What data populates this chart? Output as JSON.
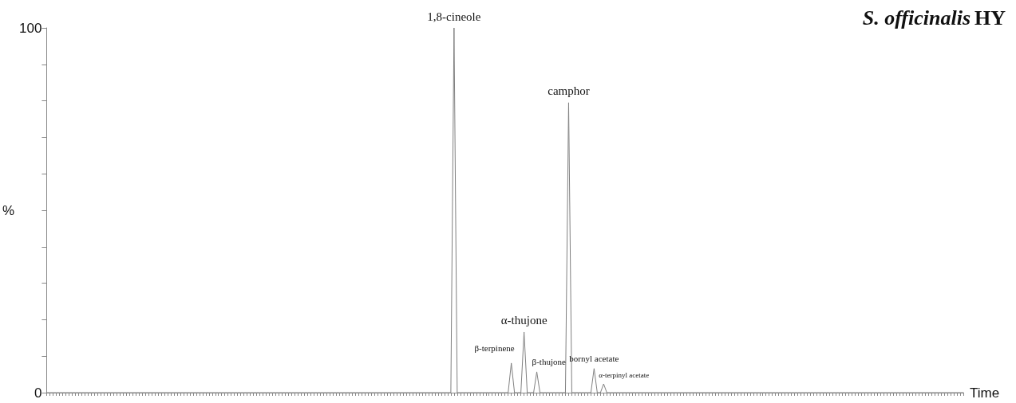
{
  "chart_data": {
    "type": "line",
    "title": "S. officinalis HY",
    "xlabel": "Time",
    "ylabel": "%",
    "categories": [
      null,
      null,
      null,
      null,
      null,
      null,
      null,
      null,
      null,
      null,
      null,
      null,
      null,
      null,
      null,
      null,
      null,
      null,
      null,
      null,
      null,
      null,
      null,
      null,
      null,
      null,
      null,
      null,
      null,
      null,
      null,
      null,
      null,
      null,
      null,
      null,
      null,
      null,
      null,
      null,
      null,
      null,
      null,
      null,
      null,
      null,
      null,
      null,
      null,
      null,
      null,
      null,
      null,
      null,
      null,
      null,
      null,
      null,
      null,
      null,
      null,
      null,
      null,
      null,
      null,
      null,
      null,
      null,
      null,
      null,
      null,
      null,
      null,
      null,
      null,
      null,
      null,
      null,
      null,
      null,
      null,
      null,
      null,
      null,
      null,
      null,
      null,
      null,
      null,
      null,
      null,
      null,
      null,
      null,
      null,
      null,
      null,
      null,
      null,
      null,
      null,
      null,
      null,
      null,
      null,
      null,
      null,
      null,
      null,
      null,
      null,
      null,
      null,
      null,
      null,
      null,
      null,
      null,
      null,
      null,
      null,
      null,
      null,
      null,
      null,
      null,
      null,
      null,
      null,
      null,
      null,
      null,
      null,
      null,
      null,
      null,
      null,
      null,
      null,
      null,
      null,
      null,
      null,
      null,
      null,
      null,
      null,
      null,
      null,
      null,
      null,
      null,
      null,
      null,
      null,
      null,
      null,
      null,
      null,
      null,
      null,
      null,
      null,
      null,
      null,
      null,
      null,
      null,
      null,
      null,
      null,
      null,
      null,
      null,
      null,
      null,
      null,
      null,
      null,
      null,
      null,
      null,
      null,
      null,
      null,
      null,
      null,
      null,
      null,
      null,
      null,
      null,
      null,
      null,
      null,
      null,
      null,
      null,
      null,
      null,
      null,
      null,
      null,
      null,
      null,
      null,
      null,
      null,
      null,
      null,
      null,
      null,
      null,
      null,
      null,
      null,
      null,
      null,
      null,
      null,
      null,
      null,
      null,
      null,
      null,
      null,
      null,
      null,
      null,
      null,
      null,
      null,
      null,
      null,
      null,
      null,
      null,
      null,
      null,
      null,
      null,
      null,
      null,
      null,
      null,
      null,
      null,
      null,
      null,
      null,
      null,
      null,
      null,
      null,
      null,
      null,
      null,
      null,
      null,
      null,
      null,
      null,
      null,
      null,
      null,
      null,
      null,
      null,
      null,
      null,
      null,
      null,
      null,
      null,
      null,
      null,
      null,
      null,
      null,
      null,
      null,
      null,
      null,
      null,
      null,
      null,
      null,
      null,
      null
    ],
    "series": [
      {
        "color": "#808080",
        "values": [
          0,
          0,
          0,
          0,
          0,
          0,
          0,
          0,
          0,
          0,
          0,
          0,
          0,
          0,
          0,
          0,
          0,
          0,
          0,
          0,
          0,
          0,
          0,
          0,
          0,
          0,
          0,
          0,
          0,
          0,
          0,
          0,
          0,
          0,
          0,
          0,
          0,
          0,
          0,
          0,
          0,
          0,
          0,
          0,
          0,
          0,
          0,
          0,
          0,
          0,
          0,
          0,
          0,
          0,
          0,
          0,
          0,
          0,
          0,
          0,
          0,
          0,
          0,
          0,
          0,
          0,
          0,
          0,
          0,
          0,
          0,
          0,
          0,
          0,
          0,
          0,
          0,
          0,
          0,
          0,
          0,
          0,
          0,
          0,
          0,
          0,
          0,
          0,
          0,
          0,
          0,
          0,
          0,
          0,
          0,
          0,
          0,
          0,
          0,
          0,
          0,
          0,
          0,
          0,
          0,
          0,
          0,
          0,
          0,
          0,
          0,
          0,
          0,
          0,
          0,
          0,
          0,
          0,
          0,
          0,
          0,
          0,
          0,
          0,
          0,
          0,
          0,
          0,
          100,
          0,
          0,
          0,
          0,
          0,
          0,
          0,
          0,
          0,
          0,
          0,
          0,
          0,
          0,
          0,
          0,
          0,
          8.1,
          0,
          0,
          0,
          16.6,
          0,
          0,
          0,
          5.7,
          0,
          0,
          0,
          0,
          0,
          0,
          0,
          0,
          0,
          79.5,
          0,
          0,
          0,
          0,
          0,
          0,
          0,
          6.6,
          0,
          0,
          2.4,
          0,
          0,
          0,
          0,
          0,
          0,
          0,
          0,
          0,
          0,
          0,
          0,
          0,
          0,
          0,
          0,
          0,
          0,
          0,
          0,
          0,
          0,
          0,
          0,
          0,
          0,
          0,
          0,
          0,
          0,
          0,
          0,
          0,
          0,
          0,
          0,
          0,
          0,
          0,
          0,
          0,
          0,
          0,
          0,
          0,
          0,
          0,
          0,
          0,
          0,
          0,
          0,
          0,
          0,
          0,
          0,
          0,
          0,
          0,
          0,
          0,
          0,
          0,
          0,
          0,
          0,
          0,
          0,
          0,
          0,
          0,
          0,
          0,
          0,
          0,
          0,
          0,
          0,
          0,
          0,
          0,
          0,
          0,
          0,
          0,
          0,
          0,
          0,
          0,
          0,
          0,
          0,
          0,
          0,
          0,
          0,
          0,
          0,
          0,
          0,
          0,
          0,
          0,
          0,
          0,
          0,
          0,
          0,
          0,
          0,
          0,
          0,
          0
        ]
      }
    ],
    "annotations": [
      "1,8-cineole",
      "β-terpinene",
      "α-thujone",
      "β-thujone",
      "camphor",
      "bornyl acetate",
      "α-terpinyl acetate"
    ],
    "ylim": [
      0,
      100
    ],
    "yticks": [
      0,
      {
        "value": 10,
        "label": null
      },
      {
        "value": 20,
        "label": null
      },
      {
        "value": 30,
        "label": null
      },
      {
        "value": 40,
        "label": null
      },
      {
        "value": 50,
        "label": null
      },
      {
        "value": 60,
        "label": null
      },
      {
        "value": 70,
        "label": null
      },
      {
        "value": 80,
        "label": null
      },
      {
        "value": 90,
        "label": null
      },
      100
    ],
    "tick_labels": "y",
    "grid": false,
    "marker": "none",
    "line_style": "solid"
  }
}
